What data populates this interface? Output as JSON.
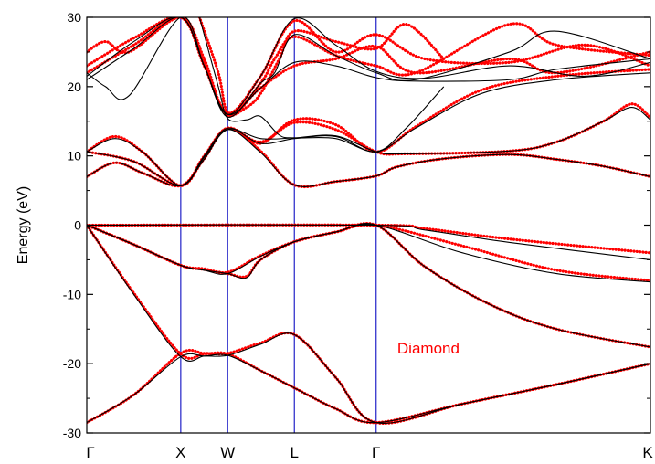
{
  "chart_data": {
    "type": "line",
    "title": "",
    "xlabel": "",
    "ylabel": "Energy (eV)",
    "ylim": [
      -30,
      30
    ],
    "yticks": [
      -30,
      -20,
      -10,
      0,
      10,
      20,
      30
    ],
    "xlim": [
      0,
      6.0
    ],
    "kpoints": [
      {
        "label": "Γ",
        "x": 0.0
      },
      {
        "label": "X",
        "x": 1.0
      },
      {
        "label": "W",
        "x": 1.5
      },
      {
        "label": "L",
        "x": 2.21
      },
      {
        "label": "Γ",
        "x": 3.08
      },
      {
        "label": "K",
        "x": 6.0
      }
    ],
    "kpoint_line_color": "#3333cc",
    "grid": false,
    "annotation": {
      "text": "Diamond",
      "color": "#ff0000",
      "x": 3.5,
      "y": -18
    },
    "series": [
      {
        "style": "black-line",
        "color": "#000000",
        "bands": [
          {
            "x": [
              0,
              0.5,
              1.0,
              1.25,
              1.5,
              1.85,
              2.21,
              2.65,
              3.08,
              4.0,
              5.0,
              6.0
            ],
            "y": [
              -28.5,
              -24.5,
              -19.0,
              -18.9,
              -18.8,
              -17.2,
              -15.8,
              -22.0,
              -28.5,
              -25.8,
              -23.0,
              -20.0
            ]
          },
          {
            "x": [
              0,
              0.5,
              1.0,
              1.25,
              1.5,
              1.85,
              2.21,
              2.65,
              3.08,
              4.0,
              5.0,
              6.0
            ],
            "y": [
              0.0,
              -10.0,
              -19.0,
              -18.9,
              -18.8,
              -21.0,
              -23.5,
              -26.5,
              -28.5,
              -25.8,
              -23.0,
              -20.0
            ]
          },
          {
            "x": [
              0,
              0.5,
              1.0,
              1.25,
              1.5,
              1.85,
              2.21,
              2.65,
              3.08,
              3.6,
              4.3,
              5.0,
              6.0
            ],
            "y": [
              0.0,
              -2.8,
              -5.8,
              -6.5,
              -7.0,
              -4.5,
              -2.4,
              -1.0,
              0.0,
              -6.0,
              -11.5,
              -15.0,
              -17.6
            ]
          },
          {
            "x": [
              0,
              0.5,
              1.0,
              1.25,
              1.5,
              1.7,
              1.85,
              2.21,
              2.65,
              3.08,
              4.0,
              5.0,
              6.0
            ],
            "y": [
              0.0,
              -2.8,
              -5.8,
              -6.5,
              -7.0,
              -7.6,
              -5.0,
              -2.4,
              -1.0,
              0.0,
              -4.0,
              -7.0,
              -8.2
            ]
          },
          {
            "x": [
              0,
              3.08,
              3.6,
              4.5,
              6.0
            ],
            "y": [
              0.0,
              0.0,
              -0.7,
              -2.5,
              -5.0
            ]
          },
          {
            "x": [
              0,
              0.3,
              0.6,
              1.0,
              1.25,
              1.5,
              1.85,
              2.21,
              2.65,
              3.08,
              3.3,
              3.8,
              4.5,
              5.0,
              5.5,
              6.0
            ],
            "y": [
              7.0,
              9.0,
              7.5,
              5.7,
              9.5,
              13.8,
              10.5,
              5.8,
              6.3,
              7.1,
              8.4,
              9.6,
              10.2,
              9.5,
              8.5,
              7.0
            ]
          },
          {
            "x": [
              0,
              0.5,
              1.0,
              1.25,
              1.5,
              1.85,
              2.21,
              2.65,
              3.08,
              3.4,
              4.5,
              5.0,
              5.5,
              5.8,
              6.0
            ],
            "y": [
              10.6,
              9.2,
              5.7,
              9.8,
              13.8,
              12.5,
              12.6,
              12.9,
              10.6,
              10.3,
              10.7,
              12.0,
              15.0,
              17.0,
              15.2
            ]
          },
          {
            "x": [
              0,
              0.3,
              0.6,
              1.0,
              1.25,
              1.5,
              1.85,
              2.21,
              2.65,
              3.08,
              3.5,
              4.2,
              5.0,
              6.0
            ],
            "y": [
              10.6,
              12.5,
              10.5,
              5.7,
              10.0,
              14.0,
              11.8,
              12.5,
              12.8,
              10.6,
              14.0,
              19.0,
              21.0,
              22.0
            ]
          },
          {
            "x": [
              0,
              0.5,
              1.0,
              1.25,
              1.5,
              1.85,
              2.21,
              2.65,
              3.08,
              3.5,
              4.5,
              5.0,
              6.0
            ],
            "y": [
              21.0,
              25.5,
              30.0,
              23.0,
              16.0,
              19.8,
              23.5,
              23.0,
              21.3,
              20.8,
              21.0,
              22.5,
              24.0
            ]
          },
          {
            "x": [
              0,
              0.5,
              1.0,
              1.25,
              1.5,
              1.85,
              2.21,
              2.65,
              3.08,
              3.6,
              4.5,
              5.3,
              6.0
            ],
            "y": [
              21.5,
              26.5,
              30.0,
              23.0,
              16.0,
              21.5,
              29.8,
              26.0,
              22.2,
              21.2,
              23.0,
              21.5,
              23.5
            ]
          },
          {
            "x": [
              0,
              0.2,
              0.45,
              1.0,
              1.25,
              1.5,
              1.85,
              2.0,
              2.21,
              2.65,
              3.08,
              3.5,
              4.5,
              5.0,
              6.0
            ],
            "y": [
              22.0,
              20.0,
              18.7,
              30.0,
              23.0,
              15.6,
              20.5,
              22.0,
              27.5,
              24.5,
              22.0,
              21.0,
              25.0,
              28.0,
              24.0
            ]
          },
          {
            "x": [
              1.2,
              1.4,
              1.5,
              1.7,
              1.85,
              2.05,
              2.21,
              2.65,
              3.08,
              3.4,
              3.8
            ],
            "y": [
              30.0,
              20.0,
              15.4,
              15.2,
              15.7,
              13.0,
              12.6,
              12.5,
              10.6,
              14.0,
              20.0
            ]
          }
        ]
      },
      {
        "style": "red-dots",
        "color": "#ff0000",
        "bands": [
          {
            "x": [
              0,
              0.5,
              1.0,
              1.25,
              1.5,
              1.85,
              2.21,
              2.65,
              3.08,
              4.0,
              5.0,
              6.0
            ],
            "y": [
              -28.5,
              -24.5,
              -18.5,
              -18.5,
              -18.5,
              -17.0,
              -15.8,
              -22.0,
              -28.5,
              -25.8,
              -23.0,
              -20.0
            ]
          },
          {
            "x": [
              0,
              0.5,
              1.0,
              1.25,
              1.5,
              1.85,
              2.21,
              2.65,
              3.08,
              4.0,
              5.0,
              6.0
            ],
            "y": [
              0.0,
              -9.8,
              -18.6,
              -18.6,
              -18.6,
              -21.0,
              -23.5,
              -26.5,
              -28.5,
              -25.8,
              -23.0,
              -20.0
            ]
          },
          {
            "x": [
              0,
              0.5,
              1.0,
              1.25,
              1.5,
              1.85,
              2.21,
              2.65,
              3.08,
              3.6,
              4.3,
              5.0,
              6.0
            ],
            "y": [
              0.0,
              -2.8,
              -5.8,
              -6.3,
              -6.8,
              -4.4,
              -2.4,
              -1.0,
              0.0,
              -6.0,
              -11.5,
              -15.0,
              -17.6
            ]
          },
          {
            "x": [
              0,
              0.5,
              1.0,
              1.25,
              1.5,
              1.7,
              1.85,
              2.21,
              2.65,
              3.08,
              4.0,
              5.0,
              6.0
            ],
            "y": [
              0.0,
              -2.8,
              -5.8,
              -6.4,
              -7.0,
              -7.4,
              -5.0,
              -2.4,
              -1.0,
              0.0,
              -3.0,
              -6.5,
              -8.0
            ]
          },
          {
            "x": [
              0,
              3.08,
              3.6,
              4.5,
              6.0
            ],
            "y": [
              0.0,
              0.0,
              -0.5,
              -2.0,
              -4.0
            ]
          },
          {
            "x": [
              0,
              0.3,
              0.6,
              1.0,
              1.25,
              1.5,
              1.85,
              2.21,
              2.65,
              3.08,
              3.3,
              3.8,
              4.5,
              5.0,
              5.5,
              6.0
            ],
            "y": [
              7.0,
              9.0,
              7.5,
              5.7,
              9.6,
              14.0,
              10.7,
              5.8,
              6.3,
              7.1,
              8.4,
              9.6,
              10.2,
              9.5,
              8.5,
              7.0
            ]
          },
          {
            "x": [
              0,
              0.5,
              1.0,
              1.25,
              1.5,
              1.85,
              2.21,
              2.65,
              3.08,
              3.4,
              4.5,
              5.0,
              5.5,
              5.8,
              6.0
            ],
            "y": [
              10.6,
              9.2,
              5.7,
              9.9,
              14.0,
              12.0,
              14.8,
              13.8,
              10.6,
              10.3,
              10.7,
              12.0,
              15.0,
              17.5,
              15.5
            ]
          },
          {
            "x": [
              0,
              0.3,
              0.6,
              1.0,
              1.25,
              1.5,
              1.85,
              2.21,
              2.65,
              3.08,
              3.5,
              4.2,
              5.0,
              6.0
            ],
            "y": [
              10.6,
              12.8,
              10.5,
              5.7,
              10.0,
              14.0,
              11.8,
              15.2,
              14.5,
              10.6,
              14.2,
              19.5,
              21.5,
              22.5
            ]
          },
          {
            "x": [
              0,
              0.5,
              1.0,
              1.25,
              1.5,
              1.85,
              2.21,
              2.65,
              3.08,
              3.5,
              4.5,
              5.0,
              6.0
            ],
            "y": [
              22.0,
              26.0,
              30.0,
              23.0,
              16.2,
              19.8,
              23.0,
              24.0,
              25.8,
              22.0,
              24.0,
              22.0,
              25.0
            ]
          },
          {
            "x": [
              0,
              0.5,
              1.0,
              1.25,
              1.5,
              1.85,
              2.21,
              2.65,
              3.08,
              3.6,
              4.5,
              5.3,
              6.0
            ],
            "y": [
              23.0,
              27.0,
              30.0,
              23.5,
              16.2,
              21.5,
              29.5,
              25.0,
              27.5,
              24.0,
              23.5,
              26.0,
              23.0
            ]
          },
          {
            "x": [
              0,
              0.2,
              0.45,
              1.0,
              1.25,
              1.5,
              1.85,
              2.0,
              2.21,
              2.65,
              3.08,
              3.5,
              4.5,
              5.0,
              6.0
            ],
            "y": [
              25.0,
              26.5,
              25.0,
              30.0,
              24.0,
              15.8,
              20.5,
              24.0,
              27.2,
              24.5,
              23.0,
              22.0,
              29.0,
              26.0,
              24.5
            ]
          },
          {
            "x": [
              1.2,
              1.4,
              1.5,
              1.7,
              1.85,
              2.05,
              2.21,
              2.65,
              3.08,
              3.4,
              3.8
            ],
            "y": [
              30.0,
              22.0,
              16.2,
              17.0,
              19.0,
              24.0,
              28.0,
              26.5,
              25.5,
              29.0,
              24.0
            ]
          }
        ]
      }
    ]
  }
}
